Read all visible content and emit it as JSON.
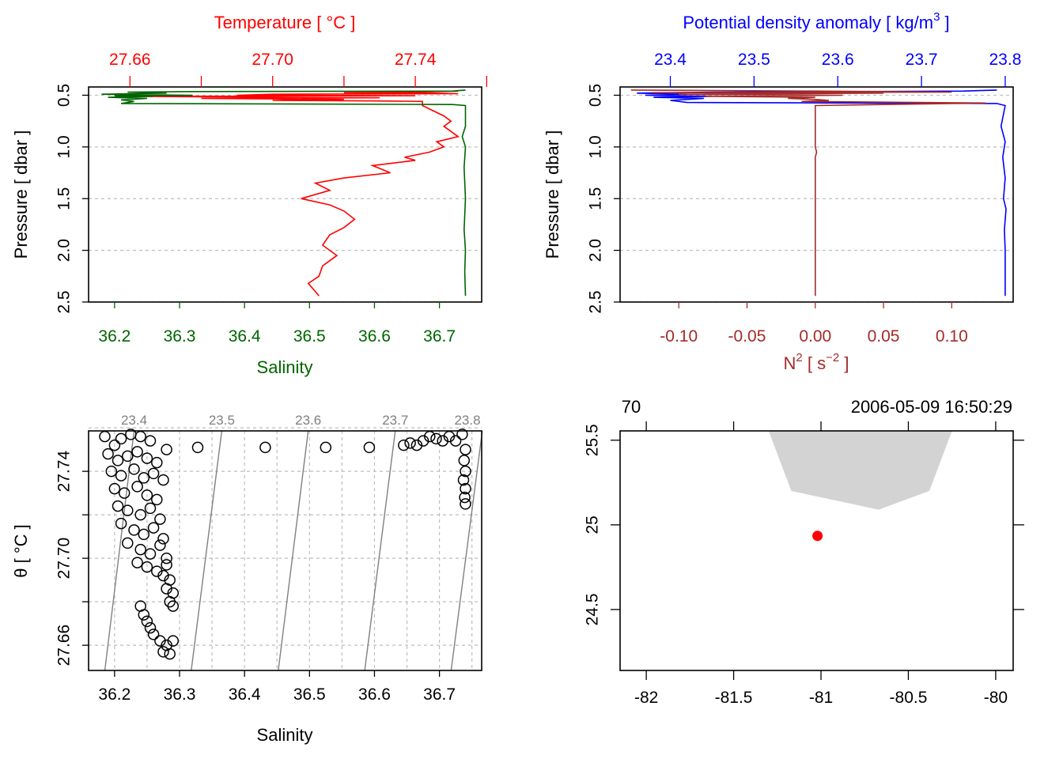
{
  "chart_data": [
    {
      "type": "line",
      "panel": "top-left",
      "title": "",
      "top_axis_label": "Temperature [ °C ]",
      "bottom_axis_label": "Salinity",
      "ylabel": "Pressure [ dbar ]",
      "salinity_ticks": [
        "36.2",
        "36.3",
        "36.4",
        "36.5",
        "36.6",
        "36.7"
      ],
      "temperature_ticks": [
        "27.66",
        "27.70",
        "27.74"
      ],
      "pressure_ticks": [
        "0.5",
        "1.0",
        "1.5",
        "2.0",
        "2.5"
      ],
      "xlim_salinity": [
        36.16,
        36.765
      ],
      "xlim_temperature": [
        27.6484,
        27.7586
      ],
      "ylim": [
        2.5,
        0.42
      ],
      "y_reversed": true,
      "grid": true,
      "series": [
        {
          "color": "#ff0000",
          "axis": "temperature",
          "points": [
            [
              27.752,
              0.46
            ],
            [
              27.74,
              0.47
            ],
            [
              27.72,
              0.475
            ],
            [
              27.745,
              0.48
            ],
            [
              27.752,
              0.485
            ],
            [
              27.7,
              0.49
            ],
            [
              27.69,
              0.5
            ],
            [
              27.74,
              0.505
            ],
            [
              27.66,
              0.51
            ],
            [
              27.7,
              0.52
            ],
            [
              27.73,
              0.525
            ],
            [
              27.68,
              0.53
            ],
            [
              27.72,
              0.54
            ],
            [
              27.7,
              0.55
            ],
            [
              27.73,
              0.555
            ],
            [
              27.742,
              0.56
            ],
            [
              27.742,
              0.6
            ],
            [
              27.745,
              0.65
            ],
            [
              27.748,
              0.7
            ],
            [
              27.75,
              0.75
            ],
            [
              27.748,
              0.8
            ],
            [
              27.752,
              0.9
            ],
            [
              27.746,
              0.95
            ],
            [
              27.748,
              1.0
            ],
            [
              27.744,
              1.05
            ],
            [
              27.737,
              1.1
            ],
            [
              27.74,
              1.13
            ],
            [
              27.728,
              1.18
            ],
            [
              27.733,
              1.25
            ],
            [
              27.72,
              1.3
            ],
            [
              27.712,
              1.35
            ],
            [
              27.716,
              1.42
            ],
            [
              27.708,
              1.5
            ],
            [
              27.716,
              1.56
            ],
            [
              27.72,
              1.62
            ],
            [
              27.723,
              1.7
            ],
            [
              27.72,
              1.78
            ],
            [
              27.716,
              1.85
            ],
            [
              27.714,
              1.95
            ],
            [
              27.718,
              2.05
            ],
            [
              27.714,
              2.15
            ],
            [
              27.713,
              2.25
            ],
            [
              27.71,
              2.32
            ],
            [
              27.712,
              2.4
            ],
            [
              27.713,
              2.44
            ]
          ]
        },
        {
          "color": "#006400",
          "axis": "salinity",
          "points": [
            [
              36.74,
              0.45
            ],
            [
              36.72,
              0.46
            ],
            [
              36.3,
              0.465
            ],
            [
              36.22,
              0.47
            ],
            [
              36.28,
              0.48
            ],
            [
              36.18,
              0.49
            ],
            [
              36.32,
              0.5
            ],
            [
              36.2,
              0.505
            ],
            [
              36.26,
              0.51
            ],
            [
              36.19,
              0.52
            ],
            [
              36.25,
              0.53
            ],
            [
              36.21,
              0.545
            ],
            [
              36.23,
              0.56
            ],
            [
              36.21,
              0.58
            ],
            [
              36.72,
              0.59
            ],
            [
              36.74,
              0.6
            ],
            [
              36.74,
              0.8
            ],
            [
              36.735,
              0.9
            ],
            [
              36.74,
              1.0
            ],
            [
              36.738,
              1.2
            ],
            [
              36.74,
              1.5
            ],
            [
              36.738,
              1.8
            ],
            [
              36.74,
              2.0
            ],
            [
              36.739,
              2.2
            ],
            [
              36.74,
              2.44
            ]
          ]
        }
      ]
    },
    {
      "type": "line",
      "panel": "top-right",
      "title": "",
      "top_axis_label_text": "Potential density anomaly [ kg/m",
      "top_axis_label_sup": "3",
      "top_axis_label_end": " ]",
      "bottom_axis_label_text": "N",
      "bottom_axis_label_sup": "2",
      "bottom_axis_label_mid": " [ s",
      "bottom_axis_label_sup2": "−2",
      "bottom_axis_label_end": " ]",
      "ylabel": "Pressure [ dbar ]",
      "n2_ticks": [
        "-0.10",
        "-0.05",
        "0.00",
        "0.05",
        "0.10"
      ],
      "density_ticks": [
        "23.4",
        "23.5",
        "23.6",
        "23.7",
        "23.8"
      ],
      "pressure_ticks": [
        "0.5",
        "1.0",
        "1.5",
        "2.0",
        "2.5"
      ],
      "xlim_n2": [
        -0.143,
        0.145
      ],
      "xlim_density": [
        23.34,
        23.8095
      ],
      "ylim": [
        2.5,
        0.42
      ],
      "y_reversed": true,
      "grid": true,
      "series": [
        {
          "color": "#0000ff",
          "axis": "density",
          "points": [
            [
              23.79,
              0.45
            ],
            [
              23.75,
              0.46
            ],
            [
              23.45,
              0.47
            ],
            [
              23.36,
              0.48
            ],
            [
              23.42,
              0.49
            ],
            [
              23.37,
              0.5
            ],
            [
              23.45,
              0.51
            ],
            [
              23.38,
              0.52
            ],
            [
              23.44,
              0.53
            ],
            [
              23.4,
              0.55
            ],
            [
              23.42,
              0.57
            ],
            [
              23.79,
              0.58
            ],
            [
              23.8,
              0.6
            ],
            [
              23.795,
              0.8
            ],
            [
              23.8,
              0.95
            ],
            [
              23.797,
              1.1
            ],
            [
              23.8,
              1.3
            ],
            [
              23.798,
              1.5
            ],
            [
              23.801,
              1.6
            ],
            [
              23.799,
              1.8
            ],
            [
              23.8,
              2.0
            ],
            [
              23.8,
              2.2
            ],
            [
              23.8,
              2.44
            ]
          ]
        },
        {
          "color": "#a52a2a",
          "axis": "n2",
          "points": [
            [
              -0.135,
              0.45
            ],
            [
              0.0,
              0.46
            ],
            [
              0.1,
              0.47
            ],
            [
              -0.12,
              0.475
            ],
            [
              0.05,
              0.48
            ],
            [
              -0.1,
              0.49
            ],
            [
              0.02,
              0.5
            ],
            [
              -0.08,
              0.51
            ],
            [
              0.0,
              0.52
            ],
            [
              -0.02,
              0.53
            ],
            [
              0.0,
              0.54
            ],
            [
              0.01,
              0.55
            ],
            [
              -0.01,
              0.56
            ],
            [
              0.125,
              0.575
            ],
            [
              0.0,
              0.6
            ],
            [
              0.0,
              0.62
            ],
            [
              0.0,
              0.65
            ],
            [
              0.0,
              1.0
            ],
            [
              0.001,
              1.05
            ],
            [
              0.0,
              1.1
            ],
            [
              0.0,
              2.44
            ]
          ]
        }
      ]
    },
    {
      "type": "scatter",
      "panel": "bottom-left",
      "title": "",
      "xlabel": "Salinity",
      "ylabel": "θ [ °C ]",
      "x_ticks": [
        "36.2",
        "36.3",
        "36.4",
        "36.5",
        "36.6",
        "36.7"
      ],
      "y_ticks": [
        "27.66",
        "27.70",
        "27.74"
      ],
      "xlim": [
        36.16,
        36.765
      ],
      "ylim": [
        27.6484,
        27.7586
      ],
      "grid": true,
      "isopycnal_labels": [
        "23.4",
        "23.5",
        "23.6",
        "23.7",
        "23.8"
      ],
      "isopycnals": [
        {
          "label": "23.4",
          "s_top": 36.23,
          "s_bottom": 36.185
        },
        {
          "label": "23.5",
          "s_top": 36.365,
          "s_bottom": 36.318
        },
        {
          "label": "23.6",
          "s_top": 36.498,
          "s_bottom": 36.452
        },
        {
          "label": "23.7",
          "s_top": 36.632,
          "s_bottom": 36.585
        },
        {
          "label": "23.8",
          "s_top": 36.766,
          "s_bottom": 36.718
        }
      ],
      "points": [
        [
          36.185,
          27.756
        ],
        [
          36.2,
          27.752
        ],
        [
          36.21,
          27.755
        ],
        [
          36.225,
          27.757
        ],
        [
          36.24,
          27.756
        ],
        [
          36.255,
          27.754
        ],
        [
          36.19,
          27.748
        ],
        [
          36.205,
          27.745
        ],
        [
          36.22,
          27.747
        ],
        [
          36.235,
          27.749
        ],
        [
          36.25,
          27.746
        ],
        [
          36.265,
          27.744
        ],
        [
          36.28,
          27.75
        ],
        [
          36.195,
          27.74
        ],
        [
          36.21,
          27.738
        ],
        [
          36.23,
          27.741
        ],
        [
          36.245,
          27.737
        ],
        [
          36.26,
          27.739
        ],
        [
          36.275,
          27.736
        ],
        [
          36.2,
          27.732
        ],
        [
          36.215,
          27.73
        ],
        [
          36.235,
          27.733
        ],
        [
          36.25,
          27.729
        ],
        [
          36.265,
          27.727
        ],
        [
          36.205,
          27.724
        ],
        [
          36.22,
          27.722
        ],
        [
          36.24,
          27.72
        ],
        [
          36.255,
          27.723
        ],
        [
          36.27,
          27.718
        ],
        [
          36.21,
          27.716
        ],
        [
          36.23,
          27.713
        ],
        [
          36.245,
          27.711
        ],
        [
          36.26,
          27.714
        ],
        [
          36.275,
          27.709
        ],
        [
          36.22,
          27.707
        ],
        [
          36.24,
          27.704
        ],
        [
          36.255,
          27.702
        ],
        [
          36.27,
          27.706
        ],
        [
          36.28,
          27.7
        ],
        [
          36.235,
          27.698
        ],
        [
          36.25,
          27.696
        ],
        [
          36.265,
          27.694
        ],
        [
          36.28,
          27.697
        ],
        [
          36.285,
          27.69
        ],
        [
          36.275,
          27.692
        ],
        [
          36.28,
          27.686
        ],
        [
          36.29,
          27.684
        ],
        [
          36.285,
          27.68
        ],
        [
          36.29,
          27.678
        ],
        [
          36.24,
          27.678
        ],
        [
          36.245,
          27.674
        ],
        [
          36.25,
          27.671
        ],
        [
          36.255,
          27.668
        ],
        [
          36.26,
          27.665
        ],
        [
          36.27,
          27.662
        ],
        [
          36.28,
          27.66
        ],
        [
          36.275,
          27.657
        ],
        [
          36.285,
          27.656
        ],
        [
          36.29,
          27.662
        ],
        [
          36.328,
          27.751
        ],
        [
          36.432,
          27.751
        ],
        [
          36.525,
          27.751
        ],
        [
          36.592,
          27.751
        ],
        [
          36.645,
          27.752
        ],
        [
          36.655,
          27.753
        ],
        [
          36.665,
          27.752
        ],
        [
          36.675,
          27.754
        ],
        [
          36.685,
          27.756
        ],
        [
          36.695,
          27.755
        ],
        [
          36.705,
          27.754
        ],
        [
          36.715,
          27.756
        ],
        [
          36.725,
          27.754
        ],
        [
          36.735,
          27.757
        ],
        [
          36.74,
          27.75
        ],
        [
          36.738,
          27.745
        ],
        [
          36.74,
          27.74
        ],
        [
          36.737,
          27.736
        ],
        [
          36.74,
          27.732
        ],
        [
          36.739,
          27.728
        ],
        [
          36.74,
          27.725
        ]
      ]
    },
    {
      "type": "map",
      "panel": "bottom-right",
      "title": "",
      "top_labels": [
        "70",
        "2006-05-09 16:50:29"
      ],
      "x_ticks": [
        "-82",
        "-81.5",
        "-81",
        "-80.5",
        "-80"
      ],
      "y_ticks": [
        "24.5",
        "25",
        "25.5"
      ],
      "xlim": [
        -82.15,
        -79.9
      ],
      "ylim": [
        24.14,
        25.555
      ],
      "land_color": "#d3d3d3",
      "land": [
        [
          -81.3,
          25.555
        ],
        [
          -80.25,
          25.555
        ],
        [
          -80.38,
          25.2
        ],
        [
          -80.67,
          25.09
        ],
        [
          -81.17,
          25.2
        ]
      ],
      "station": {
        "lon": -81.02,
        "lat": 24.935,
        "color": "#ff0000"
      }
    }
  ]
}
